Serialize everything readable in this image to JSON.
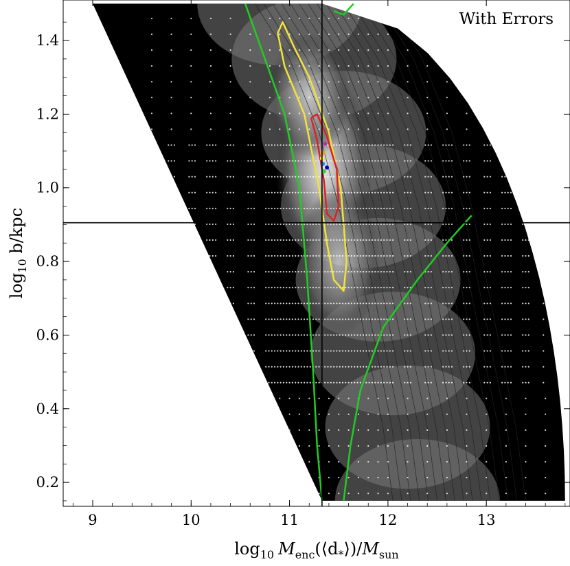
{
  "chart_data": {
    "type": "contour",
    "annotation": "With Errors",
    "xlabel": {
      "prefix": "log",
      "prefix_sub": "10",
      "var": "M",
      "var_sub": "enc",
      "arg": "(⟨d",
      "arg_sub": "*",
      "arg_close": "⟩)/",
      "denom": "M",
      "denom_sub": "sun"
    },
    "ylabel": {
      "prefix": "log",
      "prefix_sub": "10",
      "rest": " b/kpc"
    },
    "xlim": [
      8.7,
      13.85
    ],
    "ylim": [
      0.135,
      1.51
    ],
    "x_ticks": [
      9,
      10,
      11,
      12,
      13
    ],
    "x_tick_labels": [
      "9",
      "10",
      "11",
      "12",
      "13"
    ],
    "y_ticks": [
      0.2,
      0.4,
      0.6,
      0.8,
      1.0,
      1.2,
      1.4
    ],
    "y_tick_labels": [
      "0.2",
      "0.4",
      "0.6",
      "0.8",
      "1.0",
      "1.2",
      "1.4"
    ],
    "reference_lines": {
      "x": 11.33,
      "y": 0.905
    },
    "region": {
      "top_left_x": 9.0,
      "bottom_left_x": 11.33,
      "top_right_x": 11.33,
      "bottom_right_x": 13.8,
      "y_min": 0.15,
      "y_max": 1.5
    },
    "contours": [
      {
        "level": "outer",
        "color": "#22cc22",
        "points": [
          [
            11.33,
            0.15
          ],
          [
            11.28,
            0.3
          ],
          [
            11.24,
            0.5
          ],
          [
            11.18,
            0.75
          ],
          [
            11.1,
            1.0
          ],
          [
            10.95,
            1.2
          ],
          [
            10.75,
            1.35
          ],
          [
            10.55,
            1.5
          ]
        ]
      },
      {
        "level": "outer",
        "color": "#22cc22",
        "points": [
          [
            11.55,
            0.15
          ],
          [
            11.62,
            0.3
          ],
          [
            11.72,
            0.45
          ],
          [
            11.95,
            0.62
          ],
          [
            12.3,
            0.75
          ],
          [
            12.6,
            0.85
          ],
          [
            12.85,
            0.925
          ]
        ]
      },
      {
        "level": "outer",
        "color": "#22cc22",
        "points": [
          [
            11.45,
            1.48
          ],
          [
            11.55,
            1.47
          ],
          [
            11.65,
            1.5
          ]
        ]
      },
      {
        "level": "middle",
        "color": "#f2e23a",
        "points": [
          [
            10.88,
            1.42
          ],
          [
            10.95,
            1.33
          ],
          [
            11.15,
            1.2
          ],
          [
            11.3,
            1.0
          ],
          [
            11.38,
            0.85
          ],
          [
            11.45,
            0.75
          ],
          [
            11.55,
            0.72
          ],
          [
            11.58,
            0.8
          ],
          [
            11.52,
            1.0
          ],
          [
            11.4,
            1.15
          ],
          [
            11.2,
            1.3
          ],
          [
            11.05,
            1.38
          ],
          [
            10.93,
            1.45
          ],
          [
            10.88,
            1.42
          ]
        ]
      },
      {
        "level": "inner",
        "color": "#dd2222",
        "points": [
          [
            11.22,
            1.19
          ],
          [
            11.28,
            1.13
          ],
          [
            11.35,
            1.02
          ],
          [
            11.38,
            0.93
          ],
          [
            11.45,
            0.91
          ],
          [
            11.5,
            0.95
          ],
          [
            11.48,
            1.05
          ],
          [
            11.38,
            1.14
          ],
          [
            11.28,
            1.2
          ],
          [
            11.22,
            1.19
          ]
        ]
      }
    ],
    "markers": [
      {
        "x": 11.36,
        "y": 1.12,
        "color": "#aa33aa"
      },
      {
        "x": 11.34,
        "y": 1.095,
        "color": "#ff9900"
      },
      {
        "x": 11.33,
        "y": 1.08,
        "color": "#ffff00"
      },
      {
        "x": 11.34,
        "y": 1.065,
        "color": "#00a0ff"
      },
      {
        "x": 11.38,
        "y": 1.055,
        "color": "#0000cc"
      },
      {
        "x": 11.35,
        "y": 1.045,
        "color": "#33cc33"
      }
    ],
    "colors": {
      "background_region": "#000000",
      "grid_points": "#ffffff",
      "reference_line": "#000000",
      "contour_line": "#222222"
    }
  }
}
